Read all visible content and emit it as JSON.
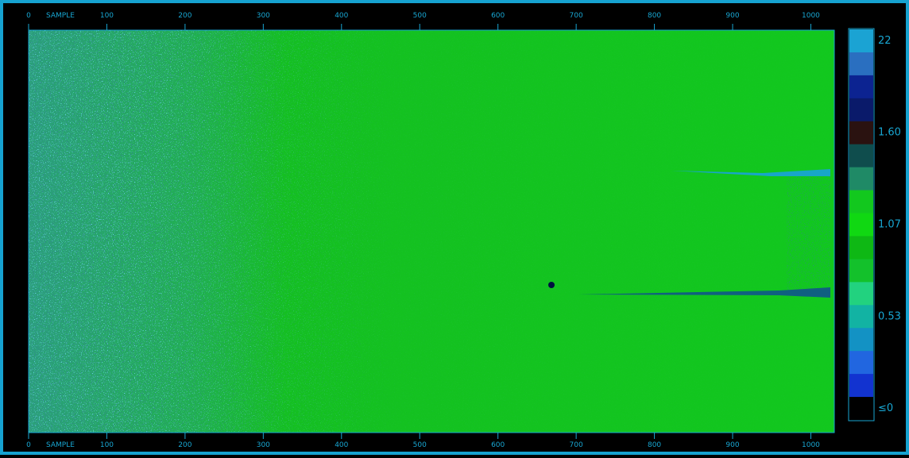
{
  "x_axis": {
    "label": "SAMPLE",
    "xlim": [
      0,
      1030
    ],
    "ticks": [
      0,
      100,
      200,
      300,
      400,
      500,
      600,
      700,
      800,
      900,
      1000
    ]
  },
  "color_scale": {
    "labels": [
      "22",
      "1.60",
      "1.07",
      "0.53",
      "≤0"
    ],
    "colors": [
      "#1ba3d3",
      "#2a6fc0",
      "#0c2391",
      "#0a1a6a",
      "#2a1210",
      "#0f4d4d",
      "#1f8a66",
      "#12c81e",
      "#10d812",
      "#0eb814",
      "#13c12b",
      "#22d27f",
      "#12b3a3",
      "#1392c4",
      "#2166e0",
      "#1233d0",
      "#000000"
    ]
  }
}
